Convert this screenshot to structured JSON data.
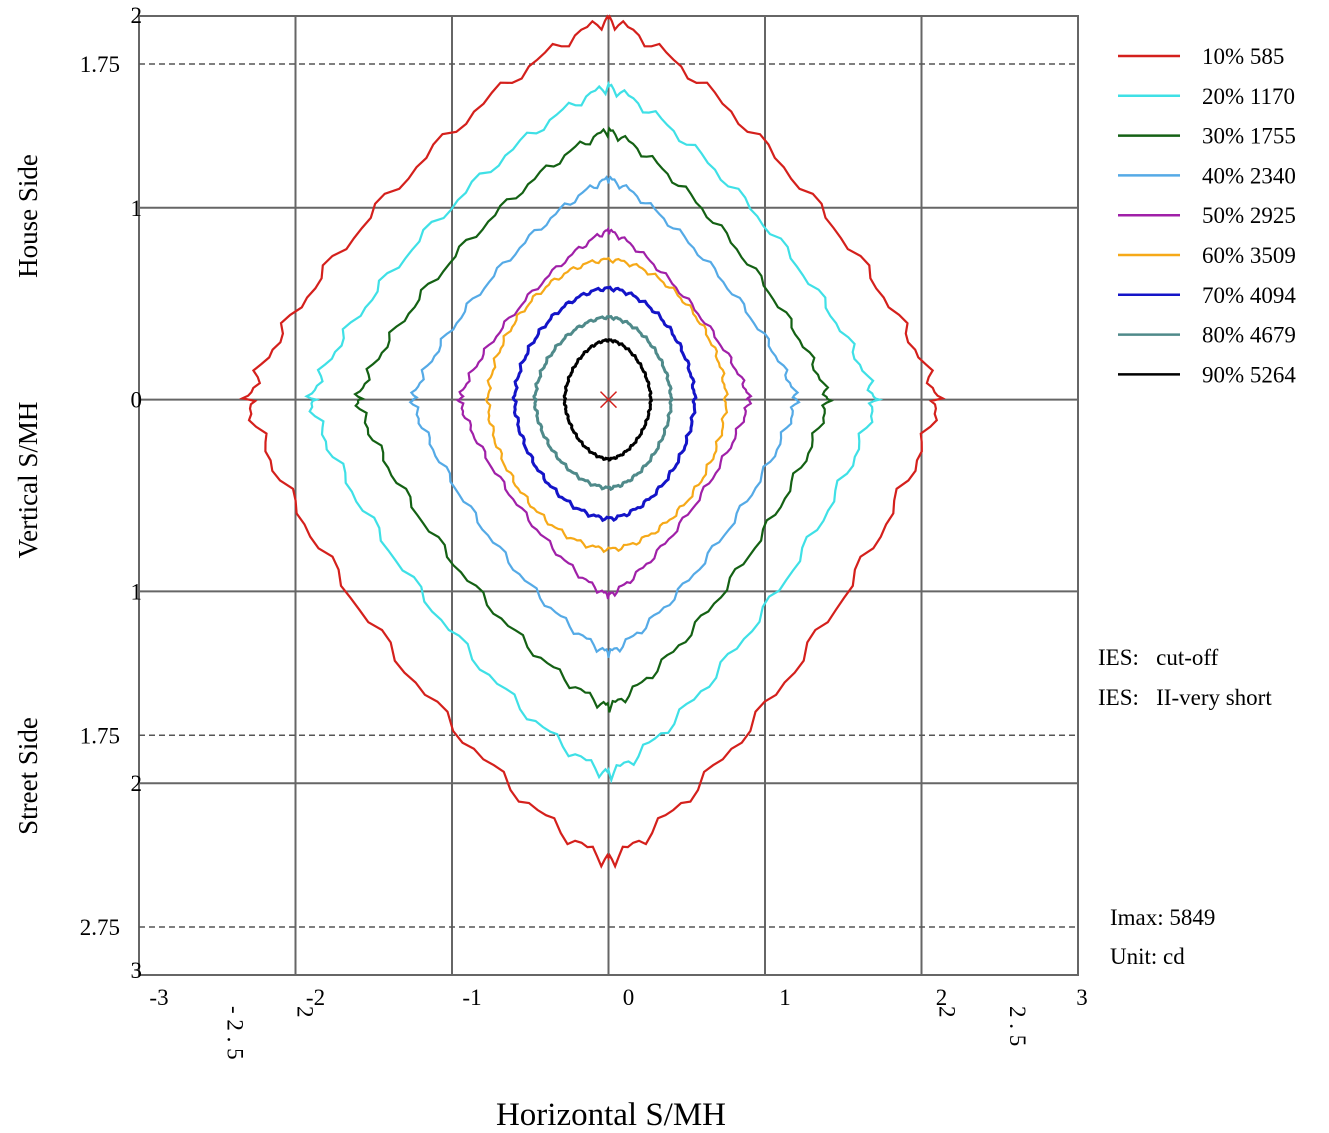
{
  "chart_data": {
    "type": "line",
    "subtype": "isocandela contour plot",
    "xlabel": "Horizontal S/MH",
    "ylabel": "Vertical S/MH",
    "y_side_labels": {
      "top": "House Side",
      "bottom": "Street Side"
    },
    "xlim": [
      -3,
      3
    ],
    "ylim": [
      -3,
      2
    ],
    "x_ticks": [
      {
        "value": -3,
        "label": "-3"
      },
      {
        "value": -2,
        "label": "-2"
      },
      {
        "value": -1,
        "label": "-1"
      },
      {
        "value": 0,
        "label": "0"
      },
      {
        "value": 1,
        "label": "1"
      },
      {
        "value": 2,
        "label": "2"
      },
      {
        "value": 3,
        "label": "3"
      }
    ],
    "x_rotated_ticks": [
      {
        "value": -2.5,
        "label": "- 2 . 5"
      },
      {
        "value": -2.05,
        "label": "2"
      },
      {
        "value": 2.05,
        "label": "2"
      },
      {
        "value": 2.5,
        "label": "2 . 5"
      }
    ],
    "y_ticks": [
      {
        "value": 2,
        "label": "2"
      },
      {
        "value": 1,
        "label": "1"
      },
      {
        "value": 0,
        "label": "0"
      },
      {
        "value": -1,
        "label": "1"
      },
      {
        "value": -2,
        "label": "2"
      },
      {
        "value": -3,
        "label": "3"
      }
    ],
    "dashed_lines": [
      {
        "value": 1.75,
        "label": "1.75"
      },
      {
        "value": -1.75,
        "label": "1.75"
      },
      {
        "value": -2.75,
        "label": "2.75"
      }
    ],
    "grid": true,
    "legend_position": "top-right",
    "series": [
      {
        "name": "10% 585",
        "color": "#d4201c",
        "right": 2.1,
        "left": 2.3,
        "top": 1.98,
        "bottom": 2.4
      },
      {
        "name": "20% 1170",
        "color": "#3fe0e6",
        "right": 1.7,
        "left": 1.9,
        "top": 1.63,
        "bottom": 1.95
      },
      {
        "name": "30% 1755",
        "color": "#146114",
        "right": 1.4,
        "left": 1.6,
        "top": 1.4,
        "bottom": 1.6
      },
      {
        "name": "40% 2340",
        "color": "#55aae6",
        "right": 1.2,
        "left": 1.25,
        "top": 1.15,
        "bottom": 1.32
      },
      {
        "name": "50% 2925",
        "color": "#a020a8",
        "right": 0.9,
        "left": 0.95,
        "top": 0.88,
        "bottom": 1.02
      },
      {
        "name": "60% 3509",
        "color": "#f6a918",
        "right": 0.75,
        "left": 0.77,
        "top": 0.73,
        "bottom": 0.78
      },
      {
        "name": "70% 4094",
        "color": "#1414c8",
        "right": 0.55,
        "left": 0.6,
        "top": 0.58,
        "bottom": 0.62
      },
      {
        "name": "80% 4679",
        "color": "#4f8a8a",
        "right": 0.4,
        "left": 0.47,
        "top": 0.43,
        "bottom": 0.46
      },
      {
        "name": "90% 5264",
        "color": "#000000",
        "right": 0.27,
        "left": 0.28,
        "top": 0.31,
        "bottom": 0.31
      }
    ],
    "center_marker": {
      "x": 0,
      "y": 0,
      "color": "#d4201c"
    },
    "annotations": {
      "ies_lines": [
        "IES:   cut-off",
        "IES:   II-very short"
      ],
      "imax": "Imax: 5849",
      "unit": "Unit: cd"
    }
  }
}
